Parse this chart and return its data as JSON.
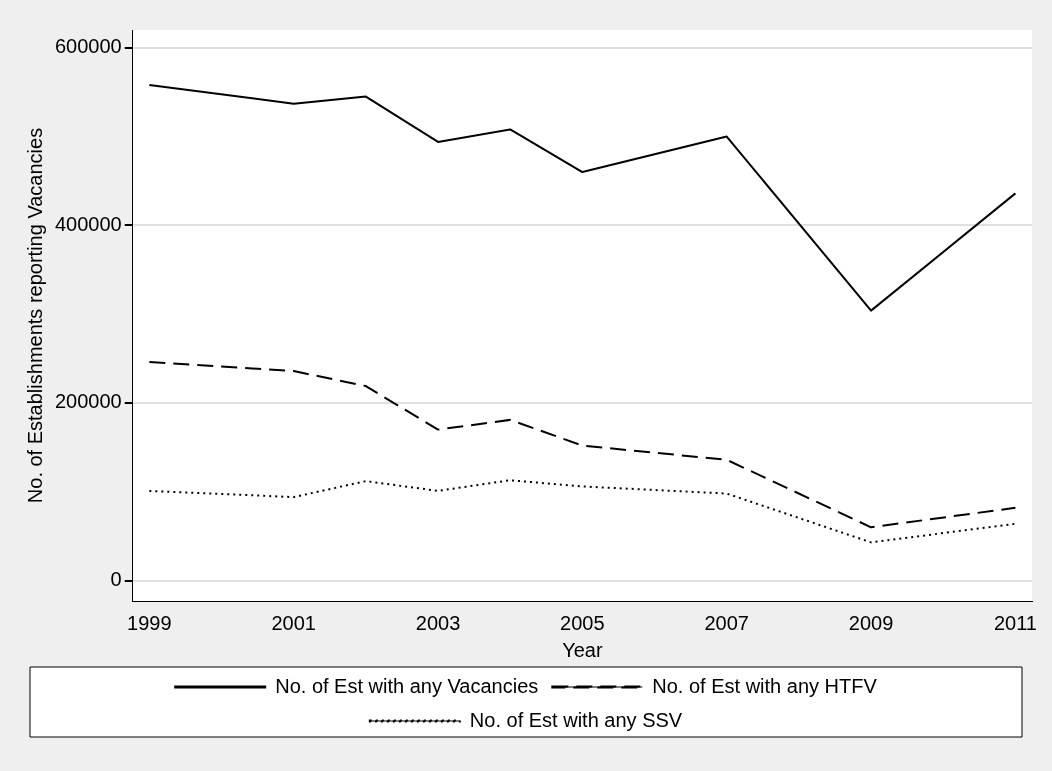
{
  "chart_data": {
    "type": "line",
    "xlabel": "Year",
    "ylabel": "No. of Establishments reporting Vacancies",
    "x": [
      1999,
      2001,
      2002,
      2003,
      2004,
      2005,
      2007,
      2009,
      2011
    ],
    "series": [
      {
        "name": "No. of Est with any Vacancies",
        "color": "#000000",
        "line_style": "solid",
        "values": [
          558000,
          537000,
          545000,
          494000,
          508000,
          460000,
          500000,
          304000,
          436000
        ]
      },
      {
        "name": "No. of Est with any HTFV",
        "color": "#000000",
        "line_style": "dashed",
        "values": [
          246000,
          236000,
          219000,
          170000,
          181000,
          152000,
          136000,
          60000,
          82000
        ]
      },
      {
        "name": "No. of Est with any SSV",
        "color": "#000000",
        "line_style": "dotted",
        "values": [
          101000,
          94000,
          112000,
          101000,
          113000,
          106000,
          98000,
          43000,
          64000
        ]
      }
    ],
    "xlim": [
      1998.77,
      2011.23
    ],
    "xticks": [
      1999,
      2001,
      2003,
      2005,
      2007,
      2009,
      2011
    ],
    "ylim": [
      -23000,
      620000
    ],
    "yticks": [
      0,
      200000,
      400000,
      600000
    ],
    "grid": "y",
    "legend": "bottom",
    "marker": "none"
  }
}
